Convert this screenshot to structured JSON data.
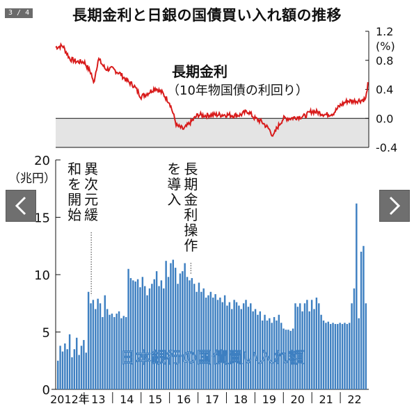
{
  "viewer": {
    "counter": "3 / 4",
    "icons": {
      "prev": "chevron-left-icon",
      "next": "chevron-right-icon"
    }
  },
  "chart_data": [
    {
      "type": "line",
      "title": "長期金利と日銀の国債買い入れ額の推移",
      "series": [
        {
          "name": "長期金利",
          "color": "#d81b1b",
          "subtitle": "（10年物国債の利回り）"
        }
      ],
      "ylabel": "(%)",
      "ylim": [
        -0.4,
        1.2
      ],
      "yticks": [
        "1.2",
        "0.8",
        "0.4",
        "0.0",
        "-0.4"
      ],
      "shaded_below_zero": true,
      "x": [
        2012.0,
        2012.25,
        2012.5,
        2012.75,
        2013.0,
        2013.25,
        2013.33,
        2013.5,
        2013.75,
        2014.0,
        2014.25,
        2014.5,
        2014.75,
        2015.0,
        2015.25,
        2015.5,
        2015.75,
        2016.0,
        2016.1,
        2016.25,
        2016.5,
        2016.75,
        2017.0,
        2017.25,
        2017.5,
        2017.75,
        2018.0,
        2018.25,
        2018.5,
        2018.75,
        2019.0,
        2019.25,
        2019.5,
        2019.65,
        2019.75,
        2020.0,
        2020.25,
        2020.5,
        2020.75,
        2021.0,
        2021.25,
        2021.5,
        2021.75,
        2022.0,
        2022.25,
        2022.5,
        2022.75,
        2022.9,
        2022.97
      ],
      "values": [
        0.98,
        1.0,
        0.82,
        0.78,
        0.78,
        0.62,
        0.48,
        0.82,
        0.68,
        0.68,
        0.62,
        0.52,
        0.45,
        0.3,
        0.35,
        0.42,
        0.35,
        0.22,
        0.1,
        -0.1,
        -0.15,
        -0.05,
        0.05,
        0.04,
        0.05,
        0.05,
        0.05,
        0.04,
        0.05,
        0.1,
        0.0,
        -0.05,
        -0.15,
        -0.25,
        -0.15,
        0.0,
        0.0,
        0.02,
        0.03,
        0.1,
        0.08,
        0.05,
        0.07,
        0.18,
        0.24,
        0.24,
        0.25,
        0.27,
        0.5
      ]
    },
    {
      "type": "bar",
      "series": [
        {
          "name": "日本銀行の国債買い入れ額",
          "color": "#3d7fc1"
        }
      ],
      "ylabel": "（兆円）",
      "ylim": [
        0,
        20
      ],
      "yticks": [
        "20",
        "15",
        "10",
        "5",
        "0"
      ],
      "xticks": [
        "2012年",
        "13",
        "14",
        "15",
        "16",
        "17",
        "18",
        "19",
        "20",
        "21",
        "22"
      ],
      "annotations": [
        {
          "text": "異次元緩和を開始",
          "x": 2013.25
        },
        {
          "text": "長期金利操作を導入",
          "x": 2016.75
        }
      ],
      "values": [
        2.5,
        3.8,
        3.3,
        4.0,
        3.5,
        4.8,
        2.8,
        3.5,
        4.5,
        3.0,
        3.8,
        4.3,
        3.2,
        8.5,
        7.5,
        7.8,
        7.0,
        7.9,
        7.5,
        6.3,
        8.2,
        7.0,
        6.5,
        6.6,
        6.3,
        6.6,
        6.8,
        6.2,
        6.4,
        6.3,
        10.5,
        9.7,
        9.5,
        9.4,
        9.6,
        8.9,
        9.8,
        9.0,
        8.2,
        8.8,
        9.2,
        9.6,
        10.3,
        9.0,
        9.5,
        8.8,
        11.2,
        9.8,
        11.0,
        11.3,
        10.6,
        9.2,
        10.1,
        10.3,
        11.0,
        9.8,
        9.5,
        9.7,
        9.2,
        8.5,
        9.3,
        8.5,
        8.8,
        8.0,
        8.2,
        8.5,
        8.0,
        8.3,
        7.8,
        8.0,
        7.6,
        8.2,
        7.3,
        7.6,
        7.0,
        7.8,
        7.6,
        7.3,
        7.0,
        7.5,
        7.8,
        7.2,
        7.5,
        6.8,
        7.0,
        6.5,
        6.8,
        6.0,
        6.5,
        6.0,
        6.2,
        5.8,
        6.3,
        6.0,
        6.5,
        5.8,
        5.3,
        5.2,
        5.2,
        5.1,
        5.3,
        7.5,
        7.2,
        7.5,
        6.8,
        7.5,
        7.8,
        6.8,
        7.8,
        7.0,
        8.0,
        7.5,
        6.5,
        6.0,
        5.8,
        5.9,
        5.7,
        5.8,
        5.7,
        5.7,
        5.8,
        5.7,
        5.8,
        5.7,
        5.8,
        7.5,
        8.8,
        16.2,
        6.2,
        12.0,
        12.5,
        7.5
      ]
    }
  ]
}
